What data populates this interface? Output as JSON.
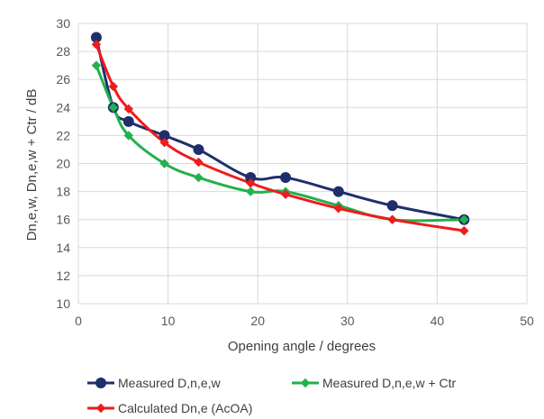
{
  "chart_data": {
    "type": "line",
    "xlabel": "Opening angle / degrees",
    "ylabel": "Dn,e,w, Dn,e,w + Ctr / dB",
    "xlim": [
      0,
      50
    ],
    "ylim": [
      10,
      30
    ],
    "xticks": [
      "0",
      "10",
      "20",
      "30",
      "40",
      "50"
    ],
    "yticks": [
      "10",
      "12",
      "14",
      "16",
      "18",
      "20",
      "22",
      "24",
      "26",
      "28",
      "30"
    ],
    "grid": true,
    "legend_position": "bottom",
    "series": [
      {
        "name": "Measured D,n,e,w",
        "color": "#1f2f6b",
        "marker": "circle",
        "x": [
          2,
          3.9,
          5.6,
          9.6,
          13.4,
          19.2,
          23.1,
          29,
          35,
          43
        ],
        "y": [
          29,
          24,
          23,
          22,
          21,
          19,
          19,
          18,
          17,
          16
        ]
      },
      {
        "name": "Measured D,n,e,w + Ctr",
        "color": "#22b14c",
        "marker": "diamond",
        "x": [
          2,
          3.9,
          5.6,
          9.6,
          13.4,
          19.2,
          23.1,
          29,
          35,
          43
        ],
        "y": [
          27,
          24,
          22,
          20,
          19,
          18,
          18,
          17,
          16,
          16
        ]
      },
      {
        "name": "Calculated Dn,e (AcOA)",
        "color": "#ee1c1c",
        "marker": "diamond",
        "x": [
          2,
          3.9,
          5.6,
          9.6,
          13.4,
          19.2,
          23.1,
          29,
          35,
          43
        ],
        "y": [
          28.5,
          25.5,
          23.9,
          21.5,
          20.1,
          18.6,
          17.8,
          16.8,
          16.0,
          15.2
        ]
      }
    ]
  }
}
